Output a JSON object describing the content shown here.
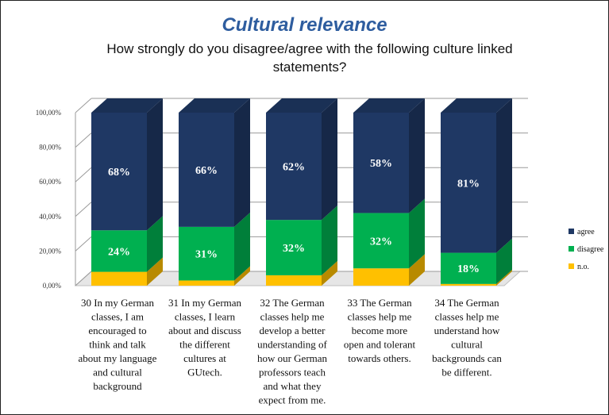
{
  "chart_data": {
    "type": "bar",
    "stacked": true,
    "title": "Cultural relevance",
    "subtitle": "How strongly do you disagree/agree with the following culture linked statements?",
    "categories": [
      "30 In my German classes, I am encouraged to think and talk about my language and cultural background",
      "31 In my German classes, I learn about and discuss the different cultures at GUtech.",
      "32 The German classes help me develop a better understanding of how our German professors teach and what they expect from me.",
      "33 The German classes help me become more open and tolerant towards others.",
      "34 The German classes help me understand how cultural backgrounds can be different."
    ],
    "category_lines": [
      [
        "30 In my German",
        "classes, I am",
        "encouraged to",
        "think and talk",
        "about my language",
        "and cultural",
        "background"
      ],
      [
        "31 In my German",
        "classes, I learn",
        "about and discuss",
        "the different",
        "cultures at",
        "GUtech."
      ],
      [
        "32 The German",
        "classes help me",
        "develop a better",
        "understanding of",
        "how our German",
        "professors teach",
        "and what they",
        "expect from me."
      ],
      [
        "33 The German",
        "classes help me",
        "become more",
        "open and tolerant",
        "towards others."
      ],
      [
        "34 The German",
        "classes help me",
        "understand how",
        "cultural",
        "backgrounds can",
        "be different."
      ]
    ],
    "series": [
      {
        "name": "n.o.",
        "color": "#ffc000",
        "values": [
          8,
          3,
          6,
          10,
          1
        ],
        "labels": [
          "",
          "",
          "",
          "",
          ""
        ]
      },
      {
        "name": "disagree",
        "color": "#00b050",
        "values": [
          24,
          31,
          32,
          32,
          18
        ],
        "labels": [
          "24%",
          "31%",
          "32%",
          "32%",
          "18%"
        ]
      },
      {
        "name": "agree",
        "color": "#1f3864",
        "values": [
          68,
          66,
          62,
          58,
          81
        ],
        "labels": [
          "68%",
          "66%",
          "62%",
          "58%",
          "81%"
        ]
      }
    ],
    "legend_order": [
      "agree",
      "disagree",
      "n.o."
    ],
    "legend_position": "right",
    "yticks": [
      "0,00%",
      "20,00%",
      "40,00%",
      "60,00%",
      "80,00%",
      "100,00%"
    ],
    "ylim": [
      0,
      100
    ],
    "grid": true
  }
}
